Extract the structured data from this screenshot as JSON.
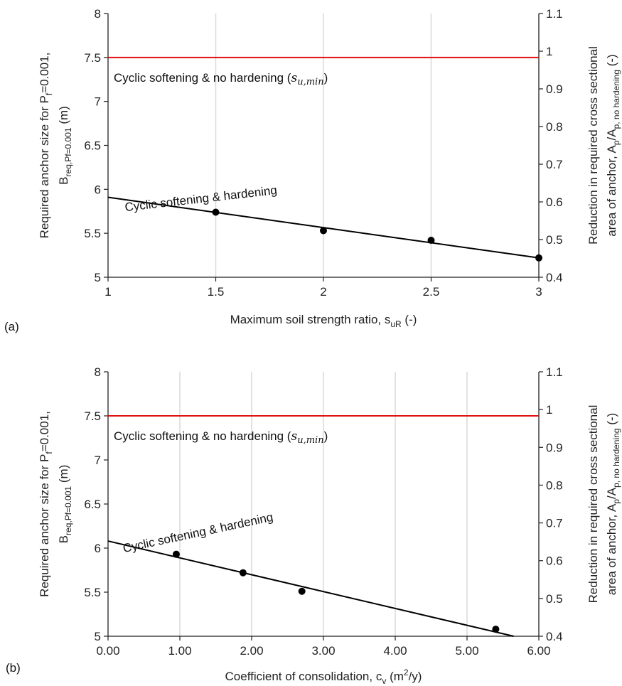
{
  "chart_data": [
    {
      "panel": "(a)",
      "type": "scatter",
      "xlabel": "Maximum soil strength ratio, s",
      "xlabel_sub": "uR",
      "xlabel_tail": " (-)",
      "ylabel_line1": "Required anchor size for P",
      "ylabel_line1_sub": "f",
      "ylabel_line1_tail": "=0.001,",
      "ylabel_line2": "B",
      "ylabel_line2_sub": "req,Pf=0.001",
      "ylabel_line2_tail": " (m)",
      "y2label_line1": "Reduction in required cross sectional",
      "y2label_line2": "area of anchor, A",
      "y2label_line2_sub1": "p",
      "y2label_line2_mid": "/A",
      "y2label_line2_sub2": "p, no hardening",
      "y2label_line2_tail": " (-)",
      "xlim": [
        1,
        3
      ],
      "xticks": [
        "1",
        "1.5",
        "2",
        "2.5",
        "3"
      ],
      "xtick_values": [
        1,
        1.5,
        2,
        2.5,
        3
      ],
      "ylim": [
        5,
        8
      ],
      "yticks": [
        "5",
        "5.5",
        "6",
        "6.5",
        "7",
        "7.5",
        "8"
      ],
      "ytick_values": [
        5,
        5.5,
        6,
        6.5,
        7,
        7.5,
        8
      ],
      "y2lim": [
        0.4,
        1.1
      ],
      "y2ticks": [
        "0.4",
        "0.5",
        "0.6",
        "0.7",
        "0.8",
        "0.9",
        "1",
        "1.1"
      ],
      "y2tick_values": [
        0.4,
        0.5,
        0.6,
        0.7,
        0.8,
        0.9,
        1.0,
        1.1
      ],
      "grid": "vertical",
      "series": [
        {
          "name": "Cyclic softening & hardening",
          "x": [
            1.5,
            2,
            2.5,
            3
          ],
          "y": [
            5.74,
            5.53,
            5.42,
            5.22
          ]
        }
      ],
      "trendline": {
        "x": [
          1,
          3
        ],
        "y": [
          5.91,
          5.22
        ],
        "color": "#000000"
      },
      "hline": {
        "y": 7.5,
        "color": "#e01010",
        "label_text": "Cyclic softening & no hardening (",
        "label_math": "s",
        "label_math_sub": "u,min",
        "label_close": ")"
      },
      "annotation": {
        "text": "Cyclic softening & hardening",
        "x": 1.08,
        "y": 5.75,
        "angle_deg": -6.5
      }
    },
    {
      "panel": "(b)",
      "type": "scatter",
      "xlabel": "Coefficient of consolidation, c",
      "xlabel_sub": "v",
      "xlabel_tail": " (m",
      "xlabel_sup": "2",
      "xlabel_tail2": "/y)",
      "ylabel_line1": "Required anchor size for P",
      "ylabel_line1_sub": "f",
      "ylabel_line1_tail": "=0.001,",
      "ylabel_line2": "B",
      "ylabel_line2_sub": "req,Pf=0.001",
      "ylabel_line2_tail": " (m)",
      "y2label_line1": "Reduction in required cross sectional",
      "y2label_line2": "area of anchor, A",
      "y2label_line2_sub1": "p",
      "y2label_line2_mid": "/A",
      "y2label_line2_sub2": "p, no hardening",
      "y2label_line2_tail": " (-)",
      "xlim": [
        0,
        6
      ],
      "xticks": [
        "0.00",
        "1.00",
        "2.00",
        "3.00",
        "4.00",
        "5.00",
        "6.00"
      ],
      "xtick_values": [
        0,
        1,
        2,
        3,
        4,
        5,
        6
      ],
      "ylim": [
        5,
        8
      ],
      "yticks": [
        "5",
        "5.5",
        "6",
        "6.5",
        "7",
        "7.5",
        "8"
      ],
      "ytick_values": [
        5,
        5.5,
        6,
        6.5,
        7,
        7.5,
        8
      ],
      "y2lim": [
        0.4,
        1.1
      ],
      "y2ticks": [
        "0.4",
        "0.5",
        "0.6",
        "0.7",
        "0.8",
        "0.9",
        "1",
        "1.1"
      ],
      "y2tick_values": [
        0.4,
        0.5,
        0.6,
        0.7,
        0.8,
        0.9,
        1.0,
        1.1
      ],
      "grid": "vertical",
      "series": [
        {
          "name": "Cyclic softening & hardening",
          "x": [
            0.95,
            1.88,
            2.7,
            5.4
          ],
          "y": [
            5.93,
            5.72,
            5.51,
            5.08
          ]
        }
      ],
      "trendline": {
        "x": [
          0,
          5.65
        ],
        "y": [
          6.08,
          5.0
        ],
        "color": "#000000"
      },
      "hline": {
        "y": 7.5,
        "color": "#e01010",
        "label_text": "Cyclic softening & no hardening (",
        "label_math": "s",
        "label_math_sub": "u,min",
        "label_close": ")"
      },
      "annotation": {
        "text": "Cyclic softening & hardening",
        "x": 0.22,
        "y": 5.95,
        "angle_deg": -12
      }
    }
  ]
}
